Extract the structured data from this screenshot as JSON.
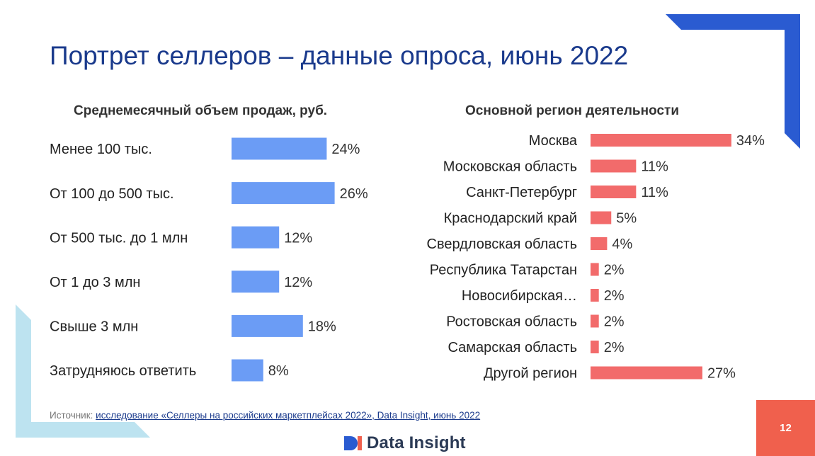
{
  "slide": {
    "title": "Портрет селлеров – данные опроса, июнь 2022",
    "page_number": "12",
    "source_label": "Источник:",
    "source_link": "исследование «Селлеры на российских маркетплейсах 2022», Data Insight, июнь 2022",
    "logo_text": "Data Insight",
    "accent_blue": "#2a5bd1",
    "accent_light": "#bde3f0",
    "accent_red": "#f0604d"
  },
  "chart_data": [
    {
      "type": "bar",
      "orientation": "horizontal",
      "title": "Среднемесячный объем продаж, руб.",
      "categories": [
        "Менее 100 тыс.",
        "От 100 до 500 тыс.",
        "От 500 тыс. до 1 млн",
        "От 1 до 3 млн",
        "Свыше 3 млн",
        "Затрудняюсь ответить"
      ],
      "values": [
        24,
        26,
        12,
        12,
        18,
        8
      ],
      "labels": [
        "24%",
        "26%",
        "12%",
        "12%",
        "18%",
        "8%"
      ],
      "unit": "%",
      "color": "#6b9cf5",
      "xlim": [
        0,
        30
      ],
      "grid": false
    },
    {
      "type": "bar",
      "orientation": "horizontal",
      "title": "Основной регион деятельности",
      "categories": [
        "Москва",
        "Московская область",
        "Санкт-Петербург",
        "Краснодарский край",
        "Свердловская область",
        "Республика Татарстан",
        "Новосибирская…",
        "Ростовская область",
        "Самарская область",
        "Другой регион"
      ],
      "values": [
        34,
        11,
        11,
        5,
        4,
        2,
        2,
        2,
        2,
        27
      ],
      "labels": [
        "34%",
        "11%",
        "11%",
        "5%",
        "4%",
        "2%",
        "2%",
        "2%",
        "2%",
        "27%"
      ],
      "unit": "%",
      "color": "#f26b6b",
      "xlim": [
        0,
        40
      ],
      "grid": false
    }
  ]
}
